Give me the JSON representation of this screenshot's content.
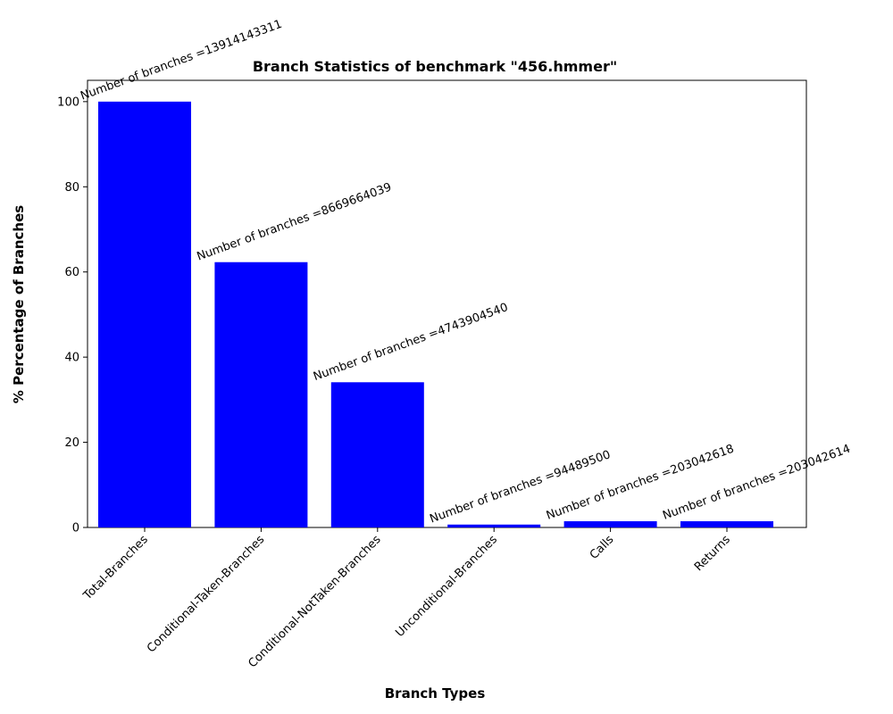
{
  "chart_data": {
    "type": "bar",
    "title": "Branch Statistics of benchmark \"456.hmmer\"",
    "xlabel": "Branch Types",
    "ylabel": "% Percentage of Branches",
    "ylim": [
      0,
      105
    ],
    "yticks": [
      0,
      20,
      40,
      60,
      80,
      100
    ],
    "grid": false,
    "bar_color": "#0000ff",
    "categories": [
      "Total-Branches",
      "Conditional-Taken-Branches",
      "Conditional-NotTaken-Branches",
      "Unconditional-Branches",
      "Calls",
      "Returns"
    ],
    "values": [
      100,
      62.3,
      34.1,
      0.68,
      1.46,
      1.46
    ],
    "annotations": [
      "Number of branches =13914143311",
      "Number of branches =8669664039",
      "Number of branches =4743904540",
      "Number of branches =94489500",
      "Number of branches =203042618",
      "Number of branches =203042614"
    ]
  }
}
